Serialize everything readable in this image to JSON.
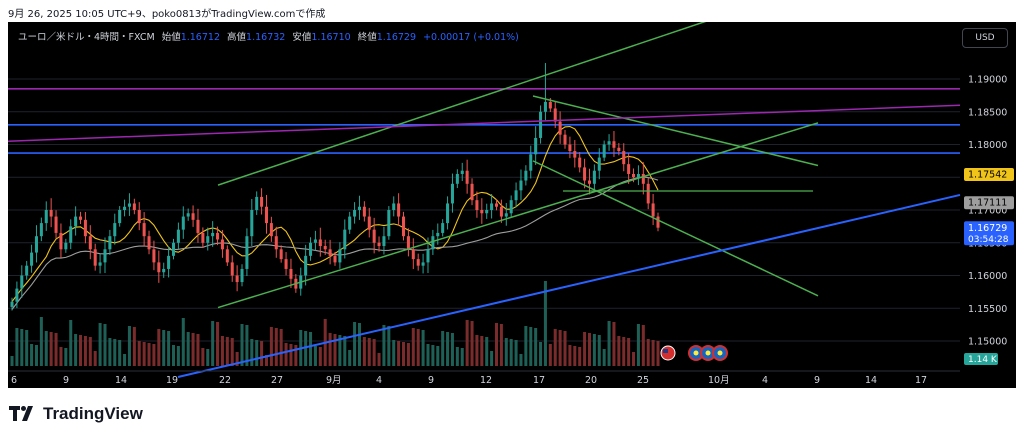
{
  "caption": "9月 26, 2025 10:05 UTC+9、poko0813がTradingView.comで作成",
  "legend": {
    "symbol": "ユーロ／米ドル・4時間・FXCM",
    "open_label": "始値",
    "open": "1.16712",
    "high_label": "高値",
    "high": "1.16732",
    "low_label": "安値",
    "low": "1.16710",
    "close_label": "終値",
    "close": "1.16729",
    "change": "+0.00017 (+0.01%)"
  },
  "currency_button": "USD",
  "logo_text": "TradingView",
  "colors": {
    "background": "#000000",
    "up_candle": "#26a69a",
    "down_candle": "#ef5350",
    "channel_lines": "#4caf50",
    "horizontal_levels": "#2962ff",
    "support_trendline": "#2962ff",
    "magenta_lines": "#9c27b0",
    "ma_short": "#f0c419",
    "ma_long": "#9e9e9e"
  },
  "icons": [
    "us-flag-icon",
    "eu-event-icon",
    "eu-event-icon",
    "eu-event-icon"
  ],
  "chart_data": {
    "type": "candlestick",
    "symbol": "EUR/USD",
    "timeframe": "4H",
    "y_axis": {
      "ticks": [
        "1.19000",
        "1.18500",
        "1.18000",
        "1.17500",
        "1.17000",
        "1.16500",
        "1.16000",
        "1.15500",
        "1.15000"
      ],
      "ylim": [
        1.1445,
        1.1975
      ]
    },
    "x_axis": {
      "ticks": [
        "6",
        "9",
        "14",
        "19",
        "22",
        "27",
        "9月",
        "4",
        "9",
        "12",
        "17",
        "20",
        "25",
        "10月",
        "4",
        "9",
        "14",
        "17"
      ]
    },
    "price_labels": [
      {
        "value": "1.17542",
        "kind": "ma"
      },
      {
        "value": "1.17111",
        "kind": "ma"
      },
      {
        "value": "1.16729",
        "kind": "last",
        "countdown": "03:54:28"
      }
    ],
    "volume_label": "1.14 K",
    "horizontal_levels": [
      1.1885,
      1.183,
      1.1787
    ],
    "closes": [
      1.156,
      1.158,
      1.16,
      1.1615,
      1.1635,
      1.166,
      1.168,
      1.17,
      1.169,
      1.1665,
      1.164,
      1.165,
      1.1675,
      1.169,
      1.1685,
      1.166,
      1.164,
      1.1615,
      1.162,
      1.164,
      1.166,
      1.168,
      1.17,
      1.1705,
      1.171,
      1.17,
      1.168,
      1.166,
      1.164,
      1.162,
      1.1605,
      1.161,
      1.163,
      1.165,
      1.167,
      1.169,
      1.1695,
      1.1685,
      1.1665,
      1.165,
      1.166,
      1.1665,
      1.1655,
      1.164,
      1.162,
      1.16,
      1.159,
      1.161,
      1.166,
      1.17,
      1.172,
      1.1705,
      1.168,
      1.166,
      1.164,
      1.1625,
      1.161,
      1.1595,
      1.158,
      1.16,
      1.163,
      1.165,
      1.1655,
      1.1645,
      1.164,
      1.163,
      1.162,
      1.164,
      1.167,
      1.169,
      1.17,
      1.1705,
      1.169,
      1.167,
      1.165,
      1.1645,
      1.166,
      1.17,
      1.171,
      1.169,
      1.166,
      1.164,
      1.1625,
      1.1615,
      1.162,
      1.164,
      1.166,
      1.1665,
      1.168,
      1.171,
      1.174,
      1.1755,
      1.176,
      1.174,
      1.1715,
      1.17,
      1.1695,
      1.17,
      1.171,
      1.1705,
      1.169,
      1.1695,
      1.1715,
      1.173,
      1.1745,
      1.176,
      1.1785,
      1.181,
      1.185,
      1.1865,
      1.1855,
      1.1835,
      1.1815,
      1.18,
      1.179,
      1.178,
      1.1765,
      1.1745,
      1.174,
      1.176,
      1.178,
      1.18,
      1.1805,
      1.1795,
      1.179,
      1.177,
      1.1755,
      1.175,
      1.1755,
      1.174,
      1.171,
      1.169,
      1.1673
    ]
  }
}
